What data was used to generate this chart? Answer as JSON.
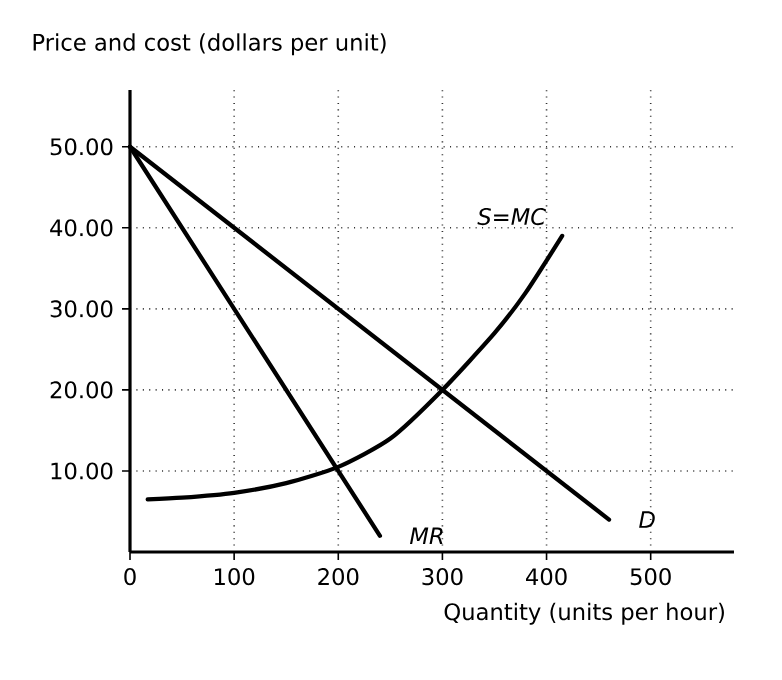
{
  "chart_data": {
    "type": "line",
    "xlabel": "Quantity (units per hour)",
    "ylabel": "Price and cost (dollars per unit)",
    "xlim": [
      0,
      580
    ],
    "ylim": [
      0,
      57
    ],
    "xticks": [
      0,
      100,
      200,
      300,
      400,
      500
    ],
    "yticks": [
      {
        "value": 10,
        "label": "10.00"
      },
      {
        "value": 20,
        "label": "20.00"
      },
      {
        "value": 30,
        "label": "30.00"
      },
      {
        "value": 40,
        "label": "40.00"
      },
      {
        "value": 50,
        "label": "50.00"
      }
    ],
    "grid": true,
    "marker": "none",
    "line_style": "solid",
    "series": [
      {
        "name": "S=MC",
        "color": "#000000",
        "x": [
          17,
          50,
          100,
          150,
          200,
          250,
          300,
          350,
          380,
          415
        ],
        "values": [
          6.5,
          6.7,
          7.3,
          8.5,
          10.5,
          14,
          20,
          27,
          32,
          39
        ]
      },
      {
        "name": "MR",
        "color": "#000000",
        "x": [
          0,
          240
        ],
        "values": [
          50,
          2
        ]
      },
      {
        "name": "D",
        "color": "#000000",
        "x": [
          0,
          460
        ],
        "values": [
          50,
          4
        ]
      }
    ]
  }
}
